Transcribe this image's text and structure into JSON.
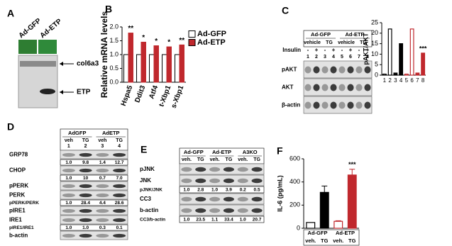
{
  "panel_labels": [
    "A",
    "B",
    "C",
    "D",
    "E",
    "F"
  ],
  "blot_a": {
    "lanes": [
      "Ad-GFP",
      "Ad-ETP"
    ],
    "bands": [
      "col6a3",
      "ETP"
    ]
  },
  "blot_c": {
    "groups": [
      "Ad-GFP",
      "Ad-ETP"
    ],
    "treatments": [
      "vehicle",
      "TG",
      "vehicle",
      "TG"
    ],
    "insulin_label": "Insulin",
    "insulin": [
      "-",
      "+",
      "-",
      "+",
      "-",
      "+",
      "-",
      "+"
    ],
    "lanes": [
      "1",
      "2",
      "3",
      "4",
      "5",
      "6",
      "7",
      "8"
    ],
    "rows": [
      {
        "band": "pAKT"
      },
      {
        "band": "AKT"
      },
      {
        "band": "β-actin"
      }
    ]
  },
  "blot_d": {
    "groups": [
      "AdGFP",
      "AdETP"
    ],
    "treatments": [
      "veh",
      "TG",
      "veh",
      "TG"
    ],
    "lanes": [
      "1",
      "2",
      "3",
      "4"
    ],
    "rows": [
      {
        "band": "GRP78"
      },
      {
        "quant": [
          "1.0",
          "9.8",
          "1.4",
          "12.7"
        ]
      },
      {
        "band": "CHOP"
      },
      {
        "quant": [
          "1.0",
          "10",
          "0.7",
          "7.0"
        ]
      },
      {
        "band": "pPERK"
      },
      {
        "band": "PERK"
      },
      {
        "ratio": "pPERK/PERK",
        "quant": [
          "1.0",
          "28.4",
          "4.4",
          "28.6"
        ]
      },
      {
        "band": "pIRE1"
      },
      {
        "band": "IRE1"
      },
      {
        "ratio": "pIRE1/IRE1",
        "quant": [
          "1.0",
          "1.0",
          "0.3",
          "0.1"
        ]
      },
      {
        "band": "b-actin"
      }
    ]
  },
  "blot_e": {
    "groups": [
      "Ad-GFP",
      "Ad-ETP",
      "A3KO"
    ],
    "treatments": [
      "veh.",
      "TG",
      "veh.",
      "TG",
      "veh.",
      "TG"
    ],
    "rows": [
      {
        "band": "pJNK"
      },
      {
        "band": "JNK"
      },
      {
        "ratio": "pJNK/JNK",
        "quant": [
          "1.0",
          "2.8",
          "1.0",
          "3.9",
          "0.2",
          "0.5"
        ]
      },
      {
        "band": "CC3"
      },
      {
        "band": "b-actin"
      },
      {
        "ratio": "CC3/b-actin",
        "quant": [
          "1.0",
          "23.5",
          "1.1",
          "33.4",
          "1.0",
          "20.7"
        ]
      }
    ]
  },
  "chart_data": [
    {
      "type": "bar",
      "ylabel": "Relative mRNA levels",
      "categories": [
        "Hspa5",
        "Ddit3",
        "Atf4",
        "t-Xbp1",
        "s-Xbp1"
      ],
      "series": [
        {
          "name": "Ad-GFP",
          "color": "#ffffff",
          "values": [
            1.0,
            1.0,
            1.0,
            1.0,
            1.0
          ]
        },
        {
          "name": "Ad-ETP",
          "color": "#c0282d",
          "values": [
            1.78,
            1.45,
            1.32,
            1.28,
            1.35
          ]
        }
      ],
      "annotations": [
        "**",
        "*",
        "*",
        "*",
        "**"
      ],
      "ylim": [
        0,
        2
      ],
      "yticks": [
        {
          "value": 0,
          "label": "0.0"
        },
        {
          "value": 0.5,
          "label": "0.5"
        },
        {
          "value": 1,
          "label": "1.0"
        },
        {
          "value": 1.5,
          "label": "1.5"
        },
        {
          "value": 2,
          "label": "2.0"
        }
      ]
    },
    {
      "type": "bar",
      "ylabel": "pAKT/AKT",
      "categories": [
        "1",
        "2",
        "3",
        "4",
        "5",
        "6",
        "7",
        "8"
      ],
      "values": [
        0.5,
        22,
        1,
        15,
        0.5,
        22,
        1,
        10.5
      ],
      "colors": [
        "#ffffff",
        "#ffffff",
        "#000000",
        "#000000",
        "#ffffff",
        "#ffffff",
        "#c0282d",
        "#c0282d"
      ],
      "edgecolors": [
        "#000000",
        "#000000",
        "#000000",
        "#000000",
        "#c0282d",
        "#c0282d",
        "#c0282d",
        "#c0282d"
      ],
      "annotation": "***",
      "ylim": [
        0,
        25
      ],
      "yticks": [
        0,
        5,
        10,
        15,
        20,
        25
      ]
    },
    {
      "type": "bar",
      "ylabel": "IL-6 (pg/mL)",
      "groups": [
        "Ad-GFP",
        "Ad-ETP"
      ],
      "categories": [
        "veh.",
        "TG",
        "veh.",
        "TG"
      ],
      "values": [
        50,
        310,
        60,
        460
      ],
      "errors": [
        0,
        55,
        5,
        50
      ],
      "colors": [
        "#ffffff",
        "#000000",
        "#ffffff",
        "#c0282d"
      ],
      "edgecolors": [
        "#000000",
        "#000000",
        "#c0282d",
        "#c0282d"
      ],
      "annotation": "***",
      "ylim": [
        0,
        600
      ],
      "yticks": [
        0,
        200,
        400,
        600
      ]
    }
  ]
}
